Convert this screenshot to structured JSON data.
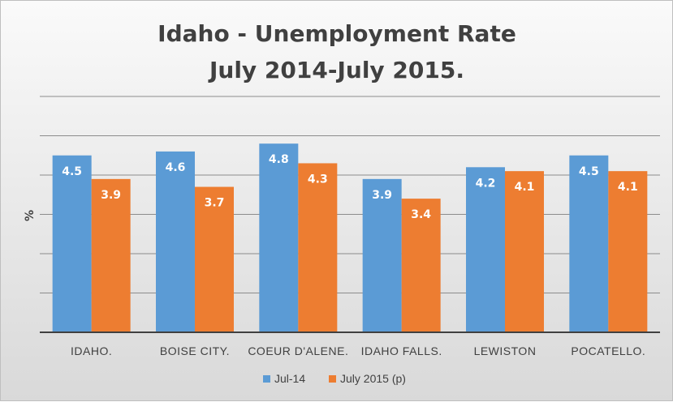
{
  "chart_data": {
    "type": "bar",
    "title": [
      "Idaho - Unemployment Rate",
      "July 2014-July 2015."
    ],
    "ylabel": "%",
    "xlabel": "",
    "categories": [
      "IDAHO.",
      "BOISE CITY.",
      "COEUR D'ALENE.",
      "IDAHO FALLS.",
      "LEWISTON",
      "POCATELLO."
    ],
    "series": [
      {
        "name": "Jul-14",
        "color": "#5b9bd5",
        "values": [
          4.5,
          4.6,
          4.8,
          3.9,
          4.2,
          4.5
        ]
      },
      {
        "name": "July 2015 (p)",
        "color": "#ed7d31",
        "values": [
          3.9,
          3.7,
          4.3,
          3.4,
          4.1,
          4.1
        ]
      }
    ],
    "ylim": [
      0,
      6
    ],
    "y_gridline_step": 1,
    "y_tick_labels_shown": false,
    "grid": true,
    "legend_position": "bottom",
    "data_labels": true
  }
}
